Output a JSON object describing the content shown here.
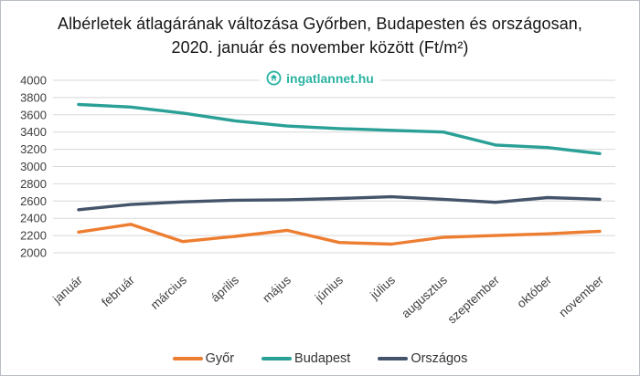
{
  "title": "Albérletek átlagárának változása Győrben, Budapesten és országosan, 2020. január és november között (Ft/m²)",
  "logo": {
    "text": "ingatlannet.hu",
    "color": "#2bb3a3",
    "icon": "house-in-circle-icon"
  },
  "chart_data": {
    "type": "line",
    "title": "Albérletek átlagárának változása Győrben, Budapesten és országosan, 2020. január és november között (Ft/m²)",
    "unit": "Ft/m²",
    "categories": [
      "január",
      "február",
      "március",
      "április",
      "május",
      "június",
      "július",
      "augusztus",
      "szeptember",
      "október",
      "november"
    ],
    "yticks": [
      4000,
      3800,
      3600,
      3400,
      3200,
      3000,
      2800,
      2600,
      2400,
      2200,
      2000
    ],
    "ylim": [
      2000,
      4000
    ],
    "ytick_step": 200,
    "grid": "horizontal",
    "legend_position": "bottom",
    "axis_text_color": "#3f3f3f",
    "gridline_color": "#d8d8d8",
    "series": [
      {
        "name": "Győr",
        "color": "#ED7D31",
        "values": [
          2240,
          2330,
          2130,
          2190,
          2260,
          2120,
          2100,
          2180,
          2200,
          2220,
          2250
        ]
      },
      {
        "name": "Budapest",
        "color": "#2AA096",
        "values": [
          3720,
          3690,
          3620,
          3530,
          3470,
          3440,
          3420,
          3400,
          3250,
          3220,
          3150
        ]
      },
      {
        "name": "Országos",
        "color": "#44546A",
        "values": [
          2500,
          2560,
          2590,
          2610,
          2615,
          2630,
          2650,
          2620,
          2585,
          2640,
          2620
        ]
      }
    ]
  }
}
